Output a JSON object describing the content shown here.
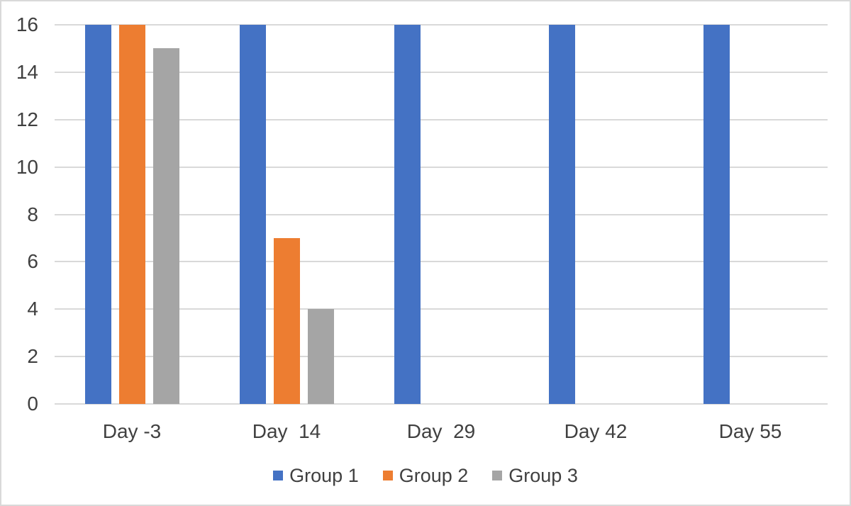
{
  "chart_data": {
    "type": "bar",
    "title": "",
    "categories": [
      "Day -3",
      "Day  14",
      "Day  29",
      "Day 42",
      "Day 55"
    ],
    "series": [
      {
        "name": "Group 1",
        "color": "#4472C4",
        "values": [
          16,
          16,
          16,
          16,
          16
        ]
      },
      {
        "name": "Group 2",
        "color": "#ED7D31",
        "values": [
          16,
          7,
          0,
          0,
          0
        ]
      },
      {
        "name": "Group 3",
        "color": "#A5A5A5",
        "values": [
          15,
          4,
          0,
          0,
          0
        ]
      }
    ],
    "xlabel": "",
    "ylabel": "",
    "ylim": [
      0,
      16
    ],
    "yticks": [
      0,
      2,
      4,
      6,
      8,
      10,
      12,
      14,
      16
    ],
    "grid": true,
    "gridline_color": "#D9D9D9",
    "axis_text_color": "#404040",
    "legend_position": "bottom"
  }
}
